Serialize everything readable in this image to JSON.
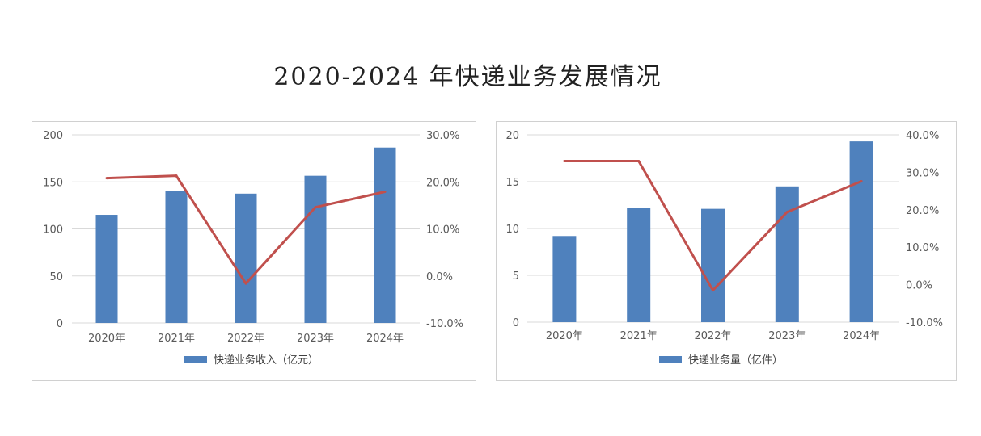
{
  "title": "2020-2024 年快递业务发展情况",
  "colors": {
    "bar": "#4f81bd",
    "line": "#c0504d",
    "grid": "#d9d9d9",
    "border": "#d0d0d0"
  },
  "chart_data": [
    {
      "type": "bar+line",
      "title": "",
      "categories": [
        "2020年",
        "2021年",
        "2022年",
        "2023年",
        "2024年"
      ],
      "series": [
        {
          "name": "快递业务收入（亿元）",
          "type": "bar",
          "axis": "left",
          "values": [
            115,
            140,
            137.5,
            156.5,
            186.5
          ]
        },
        {
          "name": "",
          "type": "line",
          "axis": "right",
          "values": [
            20.8,
            21.3,
            -1.6,
            14.6,
            17.9
          ]
        }
      ],
      "y_left": {
        "range": [
          0,
          200
        ],
        "ticks": [
          "0",
          "50",
          "100",
          "150",
          "200"
        ]
      },
      "y_right": {
        "range": [
          -10,
          30
        ],
        "ticks": [
          "-10.0%",
          "0.0%",
          "10.0%",
          "20.0%",
          "30.0%"
        ]
      },
      "grid": true,
      "legend_position": "bottom"
    },
    {
      "type": "bar+line",
      "title": "",
      "categories": [
        "2020年",
        "2021年",
        "2022年",
        "2023年",
        "2024年"
      ],
      "series": [
        {
          "name": "快递业务量（亿件）",
          "type": "bar",
          "axis": "left",
          "values": [
            9.2,
            12.2,
            12.1,
            14.5,
            19.3
          ]
        },
        {
          "name": "",
          "type": "line",
          "axis": "right",
          "values": [
            33.0,
            33.0,
            -1.5,
            19.4,
            27.6
          ]
        }
      ],
      "y_left": {
        "range": [
          0,
          20
        ],
        "ticks": [
          "0",
          "5",
          "10",
          "15",
          "20"
        ]
      },
      "y_right": {
        "range": [
          -10,
          40
        ],
        "ticks": [
          "-10.0%",
          "0.0%",
          "10.0%",
          "20.0%",
          "30.0%",
          "40.0%"
        ]
      },
      "grid": true,
      "legend_position": "bottom"
    }
  ]
}
